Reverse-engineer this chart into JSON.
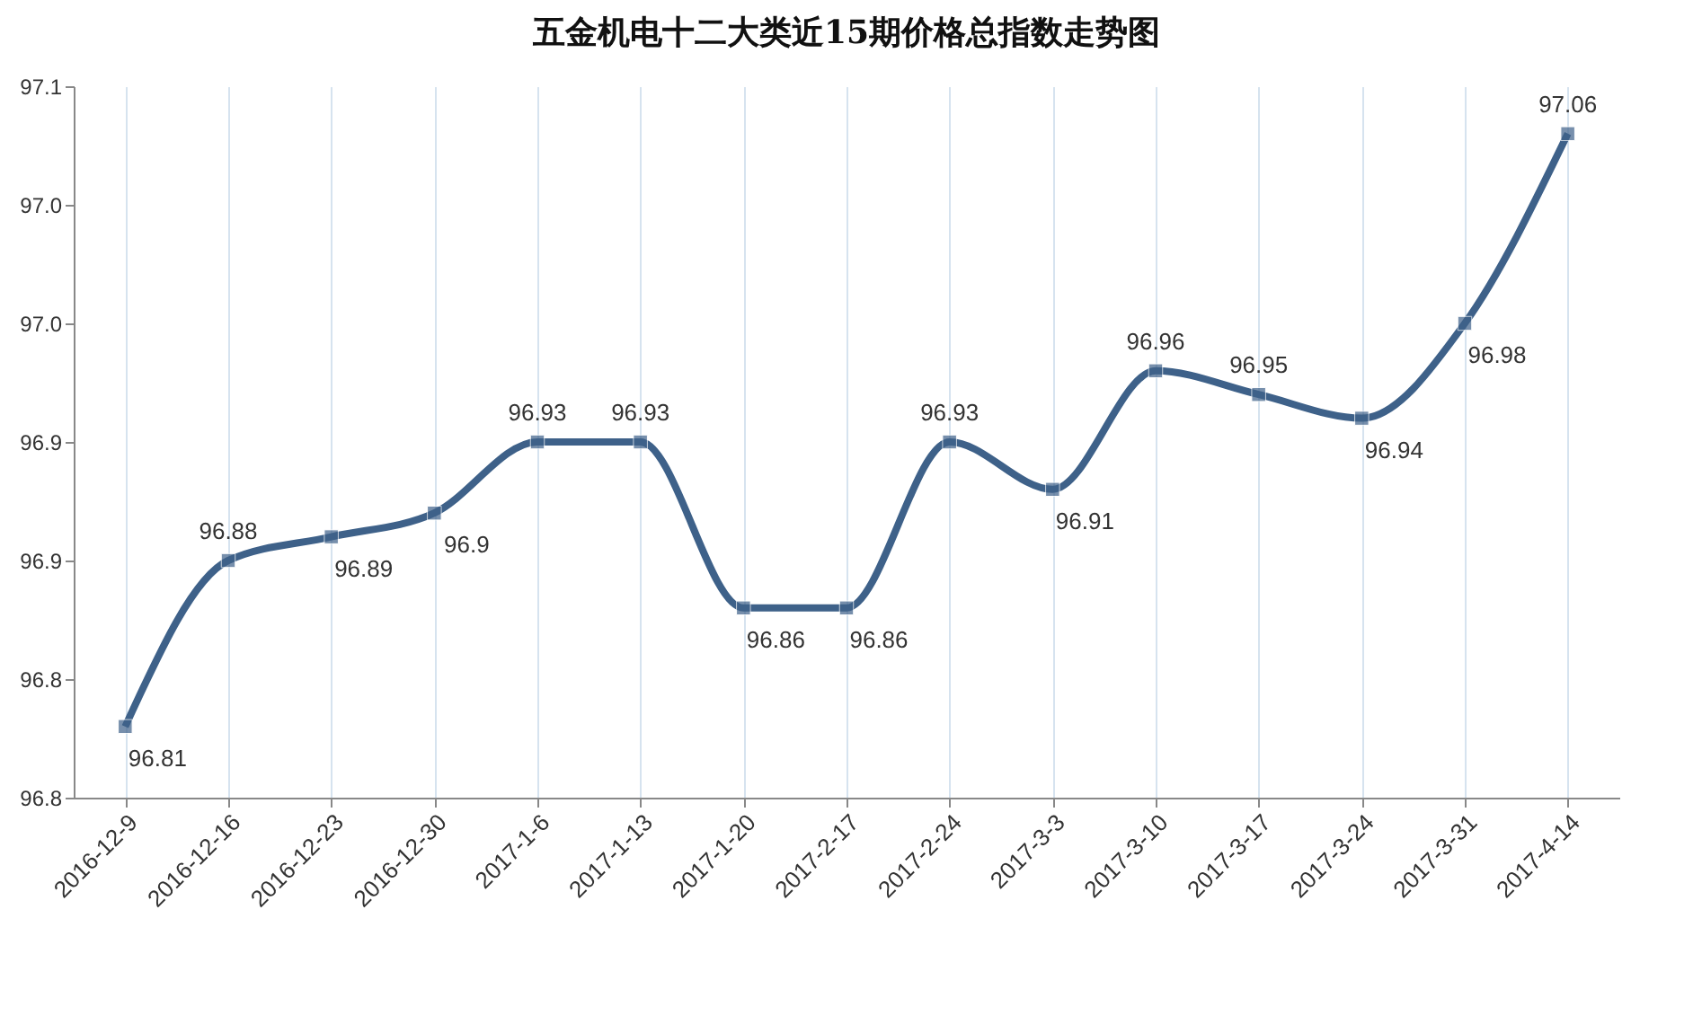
{
  "chart_data": {
    "type": "line",
    "title": "五金机电十二大类近15期价格总指数走势图",
    "categories": [
      "2016-12-9",
      "2016-12-16",
      "2016-12-23",
      "2016-12-30",
      "2017-1-6",
      "2017-1-13",
      "2017-1-20",
      "2017-2-17",
      "2017-2-24",
      "2017-3-3",
      "2017-3-10",
      "2017-3-17",
      "2017-3-24",
      "2017-3-31",
      "2017-4-14"
    ],
    "series": [
      {
        "color": "#3e6189",
        "values": [
          96.81,
          96.88,
          96.89,
          96.9,
          96.93,
          96.93,
          96.86,
          96.86,
          96.93,
          96.91,
          96.96,
          96.95,
          96.94,
          96.98,
          97.06
        ]
      }
    ],
    "ylim": [
      96.78,
      97.08
    ],
    "yticks": [
      {
        "value": 96.78,
        "label": "96.8"
      },
      {
        "value": 96.83,
        "label": "96.8"
      },
      {
        "value": 96.88,
        "label": "96.9"
      },
      {
        "value": 96.93,
        "label": "96.9"
      },
      {
        "value": 96.98,
        "label": "97.0"
      },
      {
        "value": 97.03,
        "label": "97.0"
      },
      {
        "value": 97.08,
        "label": "97.1"
      }
    ],
    "grid": "x",
    "marker": "square",
    "data_labels": true
  }
}
